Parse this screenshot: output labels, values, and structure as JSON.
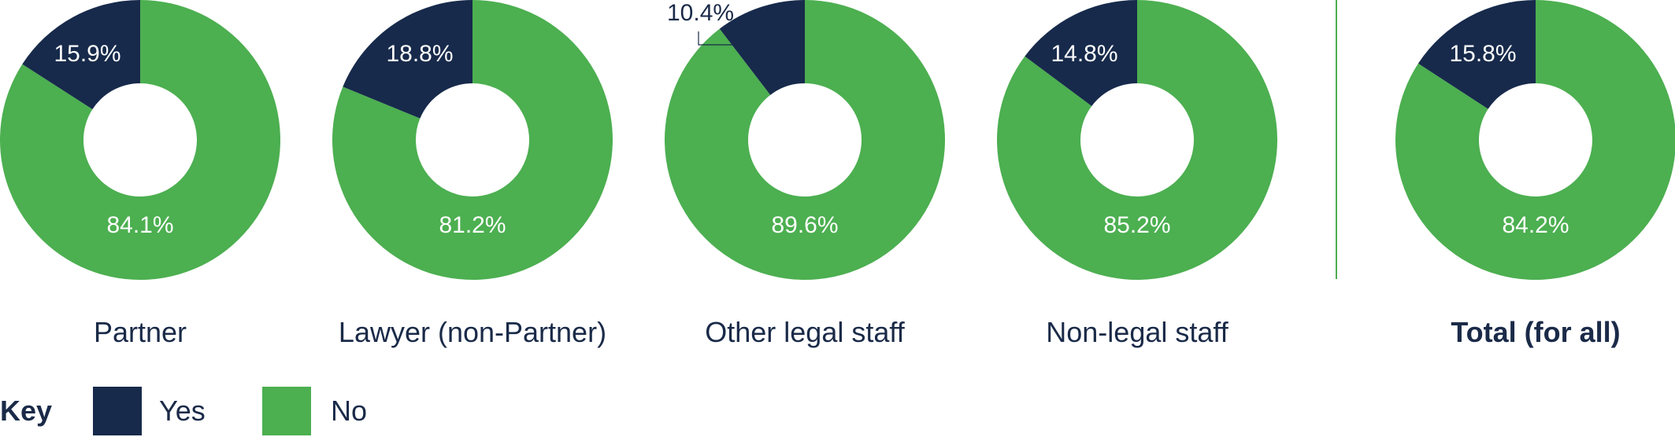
{
  "chart_data": {
    "type": "pie",
    "variant": "donut",
    "series_names": [
      "Yes",
      "No"
    ],
    "colors": {
      "yes": "#172a4b",
      "no": "#4caf50"
    },
    "charts": [
      {
        "category": "Partner",
        "yes": 15.9,
        "no": 84.1,
        "yes_label": "15.9%",
        "no_label": "84.1%",
        "bold": false
      },
      {
        "category": "Lawyer (non-Partner)",
        "yes": 18.8,
        "no": 81.2,
        "yes_label": "18.8%",
        "no_label": "81.2%",
        "bold": false
      },
      {
        "category": "Other legal staff",
        "yes": 10.4,
        "no": 89.6,
        "yes_label": "10.4%",
        "no_label": "89.6%",
        "bold": false,
        "yes_label_outside": true
      },
      {
        "category": "Non-legal staff",
        "yes": 14.8,
        "no": 85.2,
        "yes_label": "14.8%",
        "no_label": "85.2%",
        "bold": false
      },
      {
        "category": "Total (for all)",
        "yes": 15.8,
        "no": 84.2,
        "yes_label": "15.8%",
        "no_label": "84.2%",
        "bold": true
      }
    ]
  },
  "legend": {
    "title": "Key",
    "yes": "Yes",
    "no": "No"
  }
}
